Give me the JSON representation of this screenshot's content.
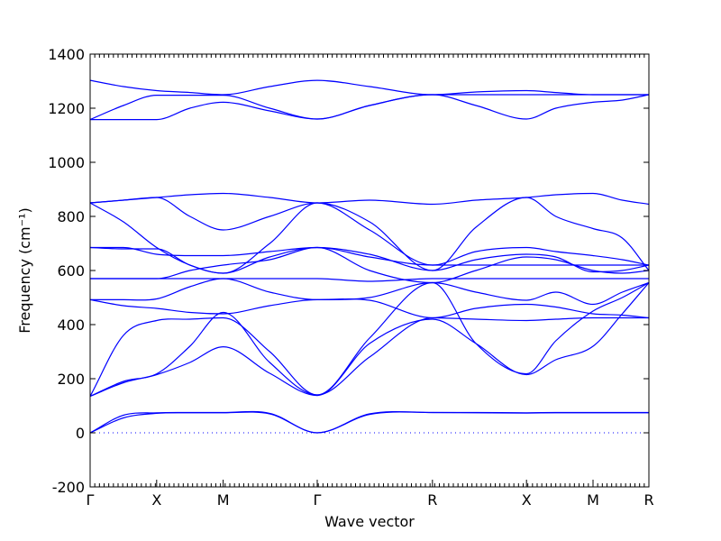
{
  "chart_data": {
    "type": "line",
    "title": "",
    "xlabel": "Wave vector",
    "ylabel": "Frequency (cm⁻¹)",
    "ylim": [
      -200,
      1400
    ],
    "yticks": [
      -200,
      0,
      200,
      400,
      600,
      800,
      1000,
      1200,
      1400
    ],
    "grid": false,
    "legend": "none",
    "line_color": "#0000ff",
    "zero_line": true,
    "high_symmetry_points": [
      {
        "label": "Γ",
        "x": 0.0
      },
      {
        "label": "X",
        "x": 0.5
      },
      {
        "label": "M",
        "x": 1.0
      },
      {
        "label": "Γ",
        "x": 1.707
      },
      {
        "label": "R",
        "x": 2.573
      },
      {
        "label": "X",
        "x": 3.28
      },
      {
        "label": "M",
        "x": 3.78
      },
      {
        "label": "R",
        "x": 4.2
      }
    ],
    "bands": [
      {
        "x": [
          0,
          0.25,
          0.5,
          0.75,
          1.0,
          1.35,
          1.707,
          2.1,
          2.573,
          2.9,
          3.28,
          3.5,
          3.78,
          4.0,
          4.2
        ],
        "y": [
          0,
          65,
          74,
          75,
          75,
          72,
          0,
          70,
          75,
          75,
          74,
          75,
          75,
          75,
          75
        ]
      },
      {
        "x": [
          0,
          0.25,
          0.5,
          0.75,
          1.0,
          1.35,
          1.707,
          2.1,
          2.573,
          2.9,
          3.28,
          3.5,
          3.78,
          4.0,
          4.2
        ],
        "y": [
          0,
          55,
          72,
          74,
          74,
          70,
          0,
          68,
          75,
          74,
          73,
          74,
          74,
          74,
          74
        ]
      },
      {
        "x": [
          0,
          0.25,
          0.5,
          0.75,
          1.0,
          1.35,
          1.707,
          2.1,
          2.573,
          2.9,
          3.28,
          3.5,
          3.78,
          4.0,
          4.2
        ],
        "y": [
          135,
          360,
          415,
          420,
          425,
          300,
          140,
          280,
          425,
          420,
          415,
          420,
          425,
          425,
          425
        ]
      },
      {
        "x": [
          0,
          0.25,
          0.5,
          0.75,
          1.0,
          1.35,
          1.707,
          2.1,
          2.573,
          2.9,
          3.28,
          3.5,
          3.78,
          4.0,
          4.2
        ],
        "y": [
          135,
          190,
          218,
          320,
          445,
          260,
          140,
          350,
          555,
          330,
          218,
          340,
          450,
          500,
          555
        ]
      },
      {
        "x": [
          0,
          0.25,
          0.5,
          0.75,
          1.0,
          1.35,
          1.707,
          2.1,
          2.573,
          2.9,
          3.28,
          3.5,
          3.78,
          4.0,
          4.2
        ],
        "y": [
          135,
          185,
          215,
          260,
          318,
          220,
          138,
          330,
          420,
          330,
          215,
          270,
          320,
          440,
          555
        ]
      },
      {
        "x": [
          0,
          0.25,
          0.5,
          0.75,
          1.0,
          1.35,
          1.707,
          2.1,
          2.573,
          2.9,
          3.28,
          3.5,
          3.78,
          4.0,
          4.2
        ],
        "y": [
          492,
          470,
          460,
          445,
          440,
          470,
          492,
          490,
          425,
          460,
          475,
          465,
          440,
          435,
          425
        ]
      },
      {
        "x": [
          0,
          0.25,
          0.5,
          0.75,
          1.0,
          1.35,
          1.707,
          2.1,
          2.573,
          2.9,
          3.28,
          3.5,
          3.78,
          4.0,
          4.2
        ],
        "y": [
          492,
          492,
          495,
          540,
          570,
          520,
          492,
          500,
          555,
          520,
          490,
          520,
          475,
          520,
          555
        ]
      },
      {
        "x": [
          0,
          0.25,
          0.5,
          0.75,
          1.0,
          1.35,
          1.707,
          2.1,
          2.573,
          2.9,
          3.28,
          3.5,
          3.78,
          4.0,
          4.2
        ],
        "y": [
          570,
          570,
          570,
          570,
          570,
          570,
          570,
          560,
          570,
          570,
          570,
          570,
          570,
          570,
          570
        ]
      },
      {
        "x": [
          0,
          0.25,
          0.5,
          0.75,
          1.0,
          1.35,
          1.707,
          2.1,
          2.573,
          2.9,
          3.28,
          3.5,
          3.78,
          4.0,
          4.2
        ],
        "y": [
          570,
          570,
          570,
          600,
          620,
          640,
          685,
          600,
          555,
          600,
          650,
          640,
          600,
          590,
          600
        ]
      },
      {
        "x": [
          0,
          0.25,
          0.5,
          0.75,
          1.0,
          1.35,
          1.707,
          2.1,
          2.573,
          2.9,
          3.28,
          3.5,
          3.78,
          4.0,
          4.2
        ],
        "y": [
          685,
          685,
          660,
          655,
          655,
          670,
          685,
          650,
          620,
          670,
          685,
          670,
          655,
          640,
          620
        ]
      },
      {
        "x": [
          0,
          0.25,
          0.5,
          0.75,
          1.0,
          1.35,
          1.707,
          2.1,
          2.573,
          2.9,
          3.28,
          3.5,
          3.78,
          4.0,
          4.2
        ],
        "y": [
          685,
          680,
          680,
          620,
          590,
          650,
          685,
          660,
          600,
          640,
          660,
          650,
          595,
          600,
          620
        ]
      },
      {
        "x": [
          0,
          0.25,
          0.5,
          0.75,
          1.0,
          1.35,
          1.707,
          2.1,
          2.573,
          2.9,
          3.28,
          3.5,
          3.78,
          4.0,
          4.2
        ],
        "y": [
          850,
          860,
          870,
          880,
          885,
          870,
          850,
          860,
          845,
          860,
          870,
          880,
          885,
          860,
          845
        ]
      },
      {
        "x": [
          0,
          0.25,
          0.5,
          0.75,
          1.0,
          1.35,
          1.707,
          2.1,
          2.573,
          2.9,
          3.28,
          3.5,
          3.78,
          4.0,
          4.2
        ],
        "y": [
          850,
          780,
          685,
          620,
          590,
          700,
          850,
          780,
          600,
          760,
          870,
          800,
          755,
          720,
          600
        ]
      },
      {
        "x": [
          0,
          0.25,
          0.5,
          0.75,
          1.0,
          1.35,
          1.707,
          2.1,
          2.573,
          2.9,
          3.28,
          3.5,
          3.78,
          4.0,
          4.2
        ],
        "y": [
          850,
          860,
          870,
          800,
          750,
          800,
          850,
          750,
          620,
          620,
          620,
          620,
          620,
          620,
          620
        ]
      },
      {
        "x": [
          0,
          0.25,
          0.5,
          0.75,
          1.0,
          1.35,
          1.707,
          2.1,
          2.573,
          2.9,
          3.28,
          3.5,
          3.78,
          4.0,
          4.2
        ],
        "y": [
          1158,
          1158,
          1158,
          1200,
          1222,
          1190,
          1160,
          1210,
          1250,
          1210,
          1160,
          1200,
          1222,
          1230,
          1250
        ]
      },
      {
        "x": [
          0,
          0.25,
          0.5,
          0.75,
          1.0,
          1.35,
          1.707,
          2.1,
          2.573,
          2.9,
          3.28,
          3.5,
          3.78,
          4.0,
          4.2
        ],
        "y": [
          1158,
          1210,
          1248,
          1248,
          1248,
          1200,
          1160,
          1210,
          1250,
          1250,
          1250,
          1250,
          1250,
          1250,
          1250
        ]
      },
      {
        "x": [
          0,
          0.25,
          0.5,
          0.75,
          1.0,
          1.35,
          1.707,
          2.1,
          2.573,
          2.9,
          3.28,
          3.5,
          3.78,
          4.0,
          4.2
        ],
        "y": [
          1303,
          1280,
          1265,
          1258,
          1250,
          1280,
          1303,
          1280,
          1250,
          1260,
          1265,
          1258,
          1250,
          1250,
          1250
        ]
      }
    ]
  }
}
